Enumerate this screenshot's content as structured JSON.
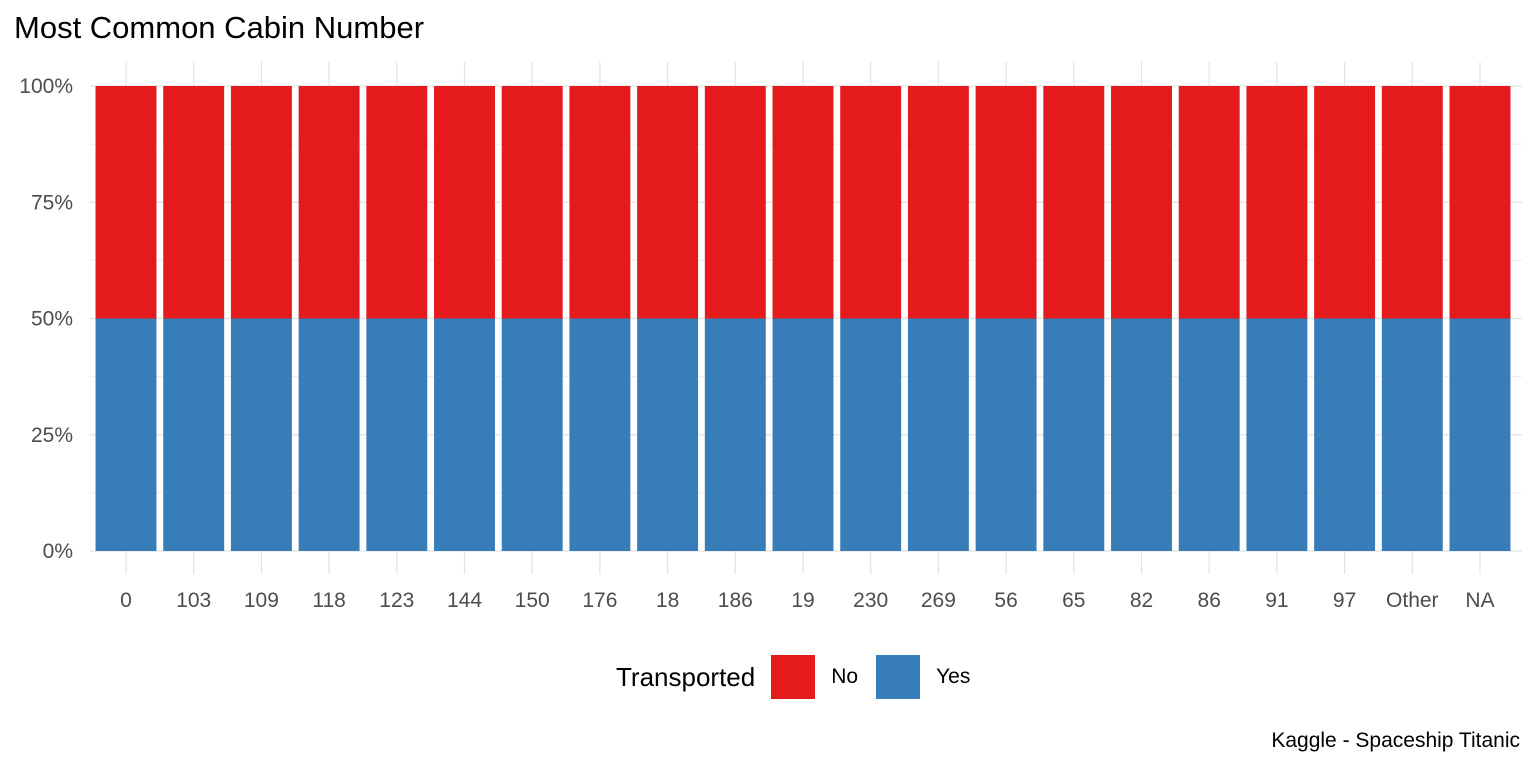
{
  "chart_data": {
    "type": "bar",
    "stacked": true,
    "title": "Most Common Cabin Number",
    "caption": "Kaggle - Spaceship Titanic",
    "xlabel": "",
    "ylabel": "",
    "categories": [
      "0",
      "103",
      "109",
      "118",
      "123",
      "144",
      "150",
      "176",
      "18",
      "186",
      "19",
      "230",
      "269",
      "56",
      "65",
      "82",
      "86",
      "91",
      "97",
      "Other",
      "NA"
    ],
    "series": [
      {
        "name": "Yes",
        "color": "#377EB8",
        "values": [
          0.5,
          0.5,
          0.5,
          0.5,
          0.5,
          0.5,
          0.5,
          0.5,
          0.5,
          0.5,
          0.5,
          0.5,
          0.5,
          0.5,
          0.5,
          0.5,
          0.5,
          0.5,
          0.5,
          0.5,
          0.5
        ]
      },
      {
        "name": "No",
        "color": "#E41A1C",
        "values": [
          0.5,
          0.5,
          0.5,
          0.5,
          0.5,
          0.5,
          0.5,
          0.5,
          0.5,
          0.5,
          0.5,
          0.5,
          0.5,
          0.5,
          0.5,
          0.5,
          0.5,
          0.5,
          0.5,
          0.5,
          0.5
        ]
      }
    ],
    "ylim": [
      0,
      1
    ],
    "yticks": [
      0,
      0.25,
      0.5,
      0.75,
      1
    ],
    "ytick_labels": [
      "0%",
      "25%",
      "50%",
      "75%",
      "100%"
    ],
    "grid": true,
    "legend": {
      "title": "Transported",
      "position": "bottom",
      "entries": [
        {
          "label": "No",
          "color": "#E41A1C"
        },
        {
          "label": "Yes",
          "color": "#377EB8"
        }
      ]
    }
  }
}
